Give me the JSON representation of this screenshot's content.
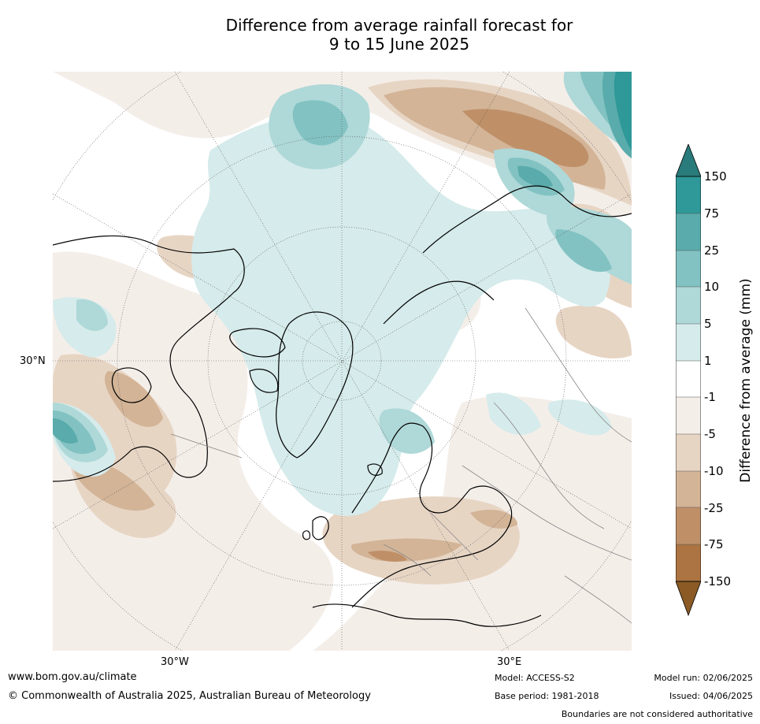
{
  "title": {
    "line1": "Difference from average rainfall forecast for",
    "line2": "9 to 15 June 2025"
  },
  "map": {
    "projection": "north-polar-stereographic",
    "lat_label": "30°N",
    "lon_labels": [
      "30°W",
      "30°E"
    ],
    "regions_shown": [
      "North America",
      "Greenland",
      "Arctic Ocean",
      "Europe",
      "North Atlantic",
      "Northern Asia",
      "Middle East",
      "North Africa"
    ]
  },
  "colorbar": {
    "label": "Difference from average (mm)",
    "ticks": [
      "150",
      "75",
      "25",
      "10",
      "5",
      "1",
      "-1",
      "-5",
      "-10",
      "-25",
      "-75",
      "-150"
    ],
    "top_extend_color": "#2a7b7b",
    "bottom_extend_color": "#8b5a25",
    "bands": [
      "#2f9898",
      "#5aabab",
      "#82c2c2",
      "#afd8d8",
      "#d6ebeb",
      "#ffffff",
      "#f4eee9",
      "#e7d5c4",
      "#d3b497",
      "#bf9068",
      "#ab7442"
    ]
  },
  "footer": {
    "website": "www.bom.gov.au/climate",
    "copyright": "© Commonwealth of Australia 2025, Australian Bureau of Meteorology",
    "model": "Model: ACCESS-S2",
    "base_period": "Base period: 1981-2018",
    "model_run": "Model run: 02/06/2025",
    "issued": "Issued: 04/06/2025",
    "disclaimer": "Boundaries are not considered authoritative"
  }
}
